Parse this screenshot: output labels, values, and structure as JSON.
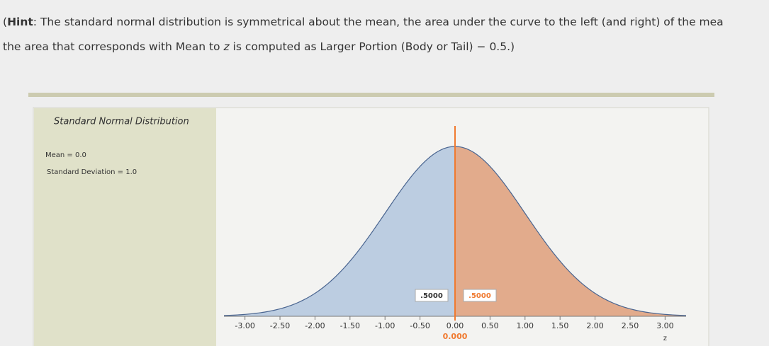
{
  "hint": {
    "label": "Hint",
    "line1": ": The standard normal distribution is symmetrical about the mean, the area under the curve to the left (and right) of the mea",
    "line2_start": "the area that corresponds with Mean to ",
    "line2_var": "z",
    "line2_end": " is computed as Larger Portion (Body or Tail) − 0.5.)"
  },
  "chart_data": {
    "type": "normal",
    "title": "Standard Normal Distribution",
    "mean_text": "Mean = 0.0",
    "sd_text": "Standard Deviation = 1.0",
    "xlabel": "z",
    "xlim": [
      -3.3,
      3.3
    ],
    "xticks": [
      {
        "value": -3,
        "label": "-3.00"
      },
      {
        "value": -2.5,
        "label": "-2.50"
      },
      {
        "value": -2,
        "label": "-2.00"
      },
      {
        "value": -1.5,
        "label": "-1.50"
      },
      {
        "value": -1,
        "label": "-1.00"
      },
      {
        "value": -0.5,
        "label": "-0.50"
      },
      {
        "value": 0,
        "label": "0.00"
      },
      {
        "value": 0.5,
        "label": "0.50"
      },
      {
        "value": 1,
        "label": "1.00"
      },
      {
        "value": 1.5,
        "label": "1.50"
      },
      {
        "value": 2,
        "label": "2.00"
      },
      {
        "value": 2.5,
        "label": "2.50"
      },
      {
        "value": 3,
        "label": "3.00"
      }
    ],
    "areas": {
      "values": [
        0.5,
        0.5
      ],
      "value_labels": [
        ".5000",
        ".5000"
      ],
      "colors": [
        "#bccde1",
        "#e2ab8c"
      ]
    },
    "z": {
      "value": 0,
      "label": "0.000"
    },
    "z_color": "#f07a30"
  }
}
